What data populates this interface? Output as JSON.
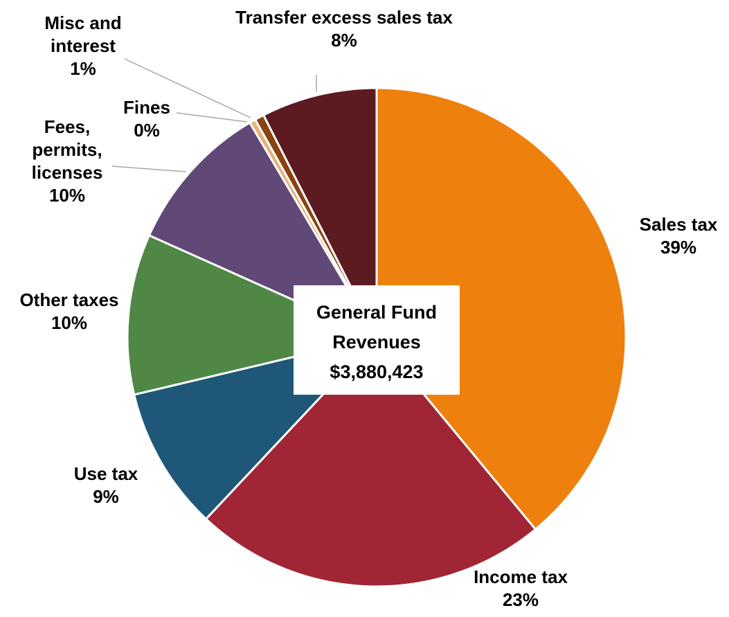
{
  "chart_data": {
    "type": "pie",
    "center_label": {
      "line1": "General Fund",
      "line2": "Revenues",
      "line3": "$3,880,423"
    },
    "slices": [
      {
        "label_lines": [
          "Sales tax"
        ],
        "pct_label": "39%",
        "value": 39.0,
        "color": "#ee800e"
      },
      {
        "label_lines": [
          "Income tax"
        ],
        "pct_label": "23%",
        "value": 23.0,
        "color": "#a02636"
      },
      {
        "label_lines": [
          "Use tax"
        ],
        "pct_label": "9%",
        "value": 9.3,
        "color": "#1f5779"
      },
      {
        "label_lines": [
          "Other taxes"
        ],
        "pct_label": "10%",
        "value": 10.4,
        "color": "#4f8844"
      },
      {
        "label_lines": [
          "Fees,",
          "permits,",
          "licenses"
        ],
        "pct_label": "10%",
        "value": 9.8,
        "color": "#604977"
      },
      {
        "label_lines": [
          "Fines"
        ],
        "pct_label": "0%",
        "value": 0.4,
        "color": "#e3b27a"
      },
      {
        "label_lines": [
          "Misc and",
          "interest"
        ],
        "pct_label": "1%",
        "value": 0.6,
        "color": "#8a4210"
      },
      {
        "label_lines": [
          "Transfer excess sales tax"
        ],
        "pct_label": "8%",
        "value": 7.5,
        "color": "#5c1a21"
      }
    ]
  }
}
